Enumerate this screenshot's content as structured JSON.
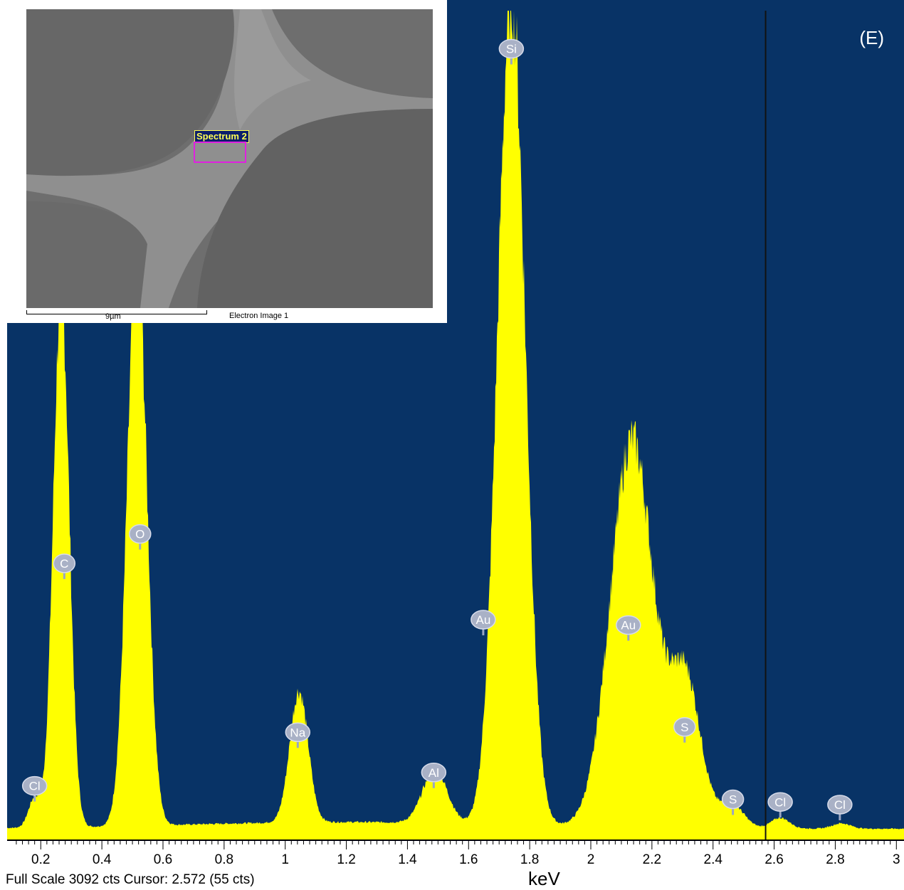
{
  "chart_data": {
    "type": "area",
    "panel_label": "(E)",
    "xlabel": "keV",
    "xlim": [
      0.1,
      3.0
    ],
    "ylim": [
      0,
      3092
    ],
    "x_ticks": [
      "0.2",
      "0.4",
      "0.6",
      "0.8",
      "1",
      "1.2",
      "1.4",
      "1.6",
      "1.8",
      "2",
      "2.2",
      "2.4",
      "2.6",
      "2.8",
      "3"
    ],
    "x_tick_values": [
      0.2,
      0.4,
      0.6,
      0.8,
      1.0,
      1.2,
      1.4,
      1.6,
      1.8,
      2.0,
      2.2,
      2.4,
      2.6,
      2.8,
      3.0
    ],
    "background_color": "#083366",
    "fill_color": "#ffff00",
    "baseline_counts": 40,
    "peaks": [
      {
        "energy": 0.18,
        "counts": 110,
        "width": 0.02
      },
      {
        "energy": 0.267,
        "counts": 2000,
        "width": 0.026
      },
      {
        "energy": 0.515,
        "counts": 2140,
        "width": 0.032
      },
      {
        "energy": 1.045,
        "counts": 490,
        "width": 0.03
      },
      {
        "energy": 1.49,
        "counts": 200,
        "width": 0.04
      },
      {
        "energy": 1.74,
        "counts": 3092,
        "width": 0.045
      },
      {
        "energy": 2.135,
        "counts": 1450,
        "width": 0.07
      },
      {
        "energy": 2.31,
        "counts": 550,
        "width": 0.05
      },
      {
        "energy": 2.46,
        "counts": 90,
        "width": 0.04
      },
      {
        "energy": 2.62,
        "counts": 40,
        "width": 0.03
      },
      {
        "energy": 2.82,
        "counts": 20,
        "width": 0.03
      }
    ],
    "element_labels": [
      {
        "label": "Cl",
        "energy": 0.18,
        "label_counts": 200
      },
      {
        "label": "C",
        "energy": 0.277,
        "label_counts": 1030
      },
      {
        "label": "O",
        "energy": 0.525,
        "label_counts": 1140
      },
      {
        "label": "Na",
        "energy": 1.041,
        "label_counts": 400
      },
      {
        "label": "Al",
        "energy": 1.486,
        "label_counts": 250
      },
      {
        "label": "Au",
        "energy": 1.648,
        "label_counts": 820
      },
      {
        "label": "Si",
        "energy": 1.74,
        "label_counts": 2950
      },
      {
        "label": "Au",
        "energy": 2.123,
        "label_counts": 800
      },
      {
        "label": "S",
        "energy": 2.307,
        "label_counts": 420
      },
      {
        "label": "S",
        "energy": 2.465,
        "label_counts": 150
      },
      {
        "label": "Cl",
        "energy": 2.62,
        "label_counts": 140
      },
      {
        "label": "Cl",
        "energy": 2.815,
        "label_counts": 130
      }
    ],
    "cursor_kev": 2.572,
    "footer": "Full Scale 3092 cts Cursor: 2.572  (55 cts)"
  },
  "inset": {
    "scale_label": "9µm",
    "caption": "Electron Image 1",
    "roi_label": "Spectrum 2"
  }
}
